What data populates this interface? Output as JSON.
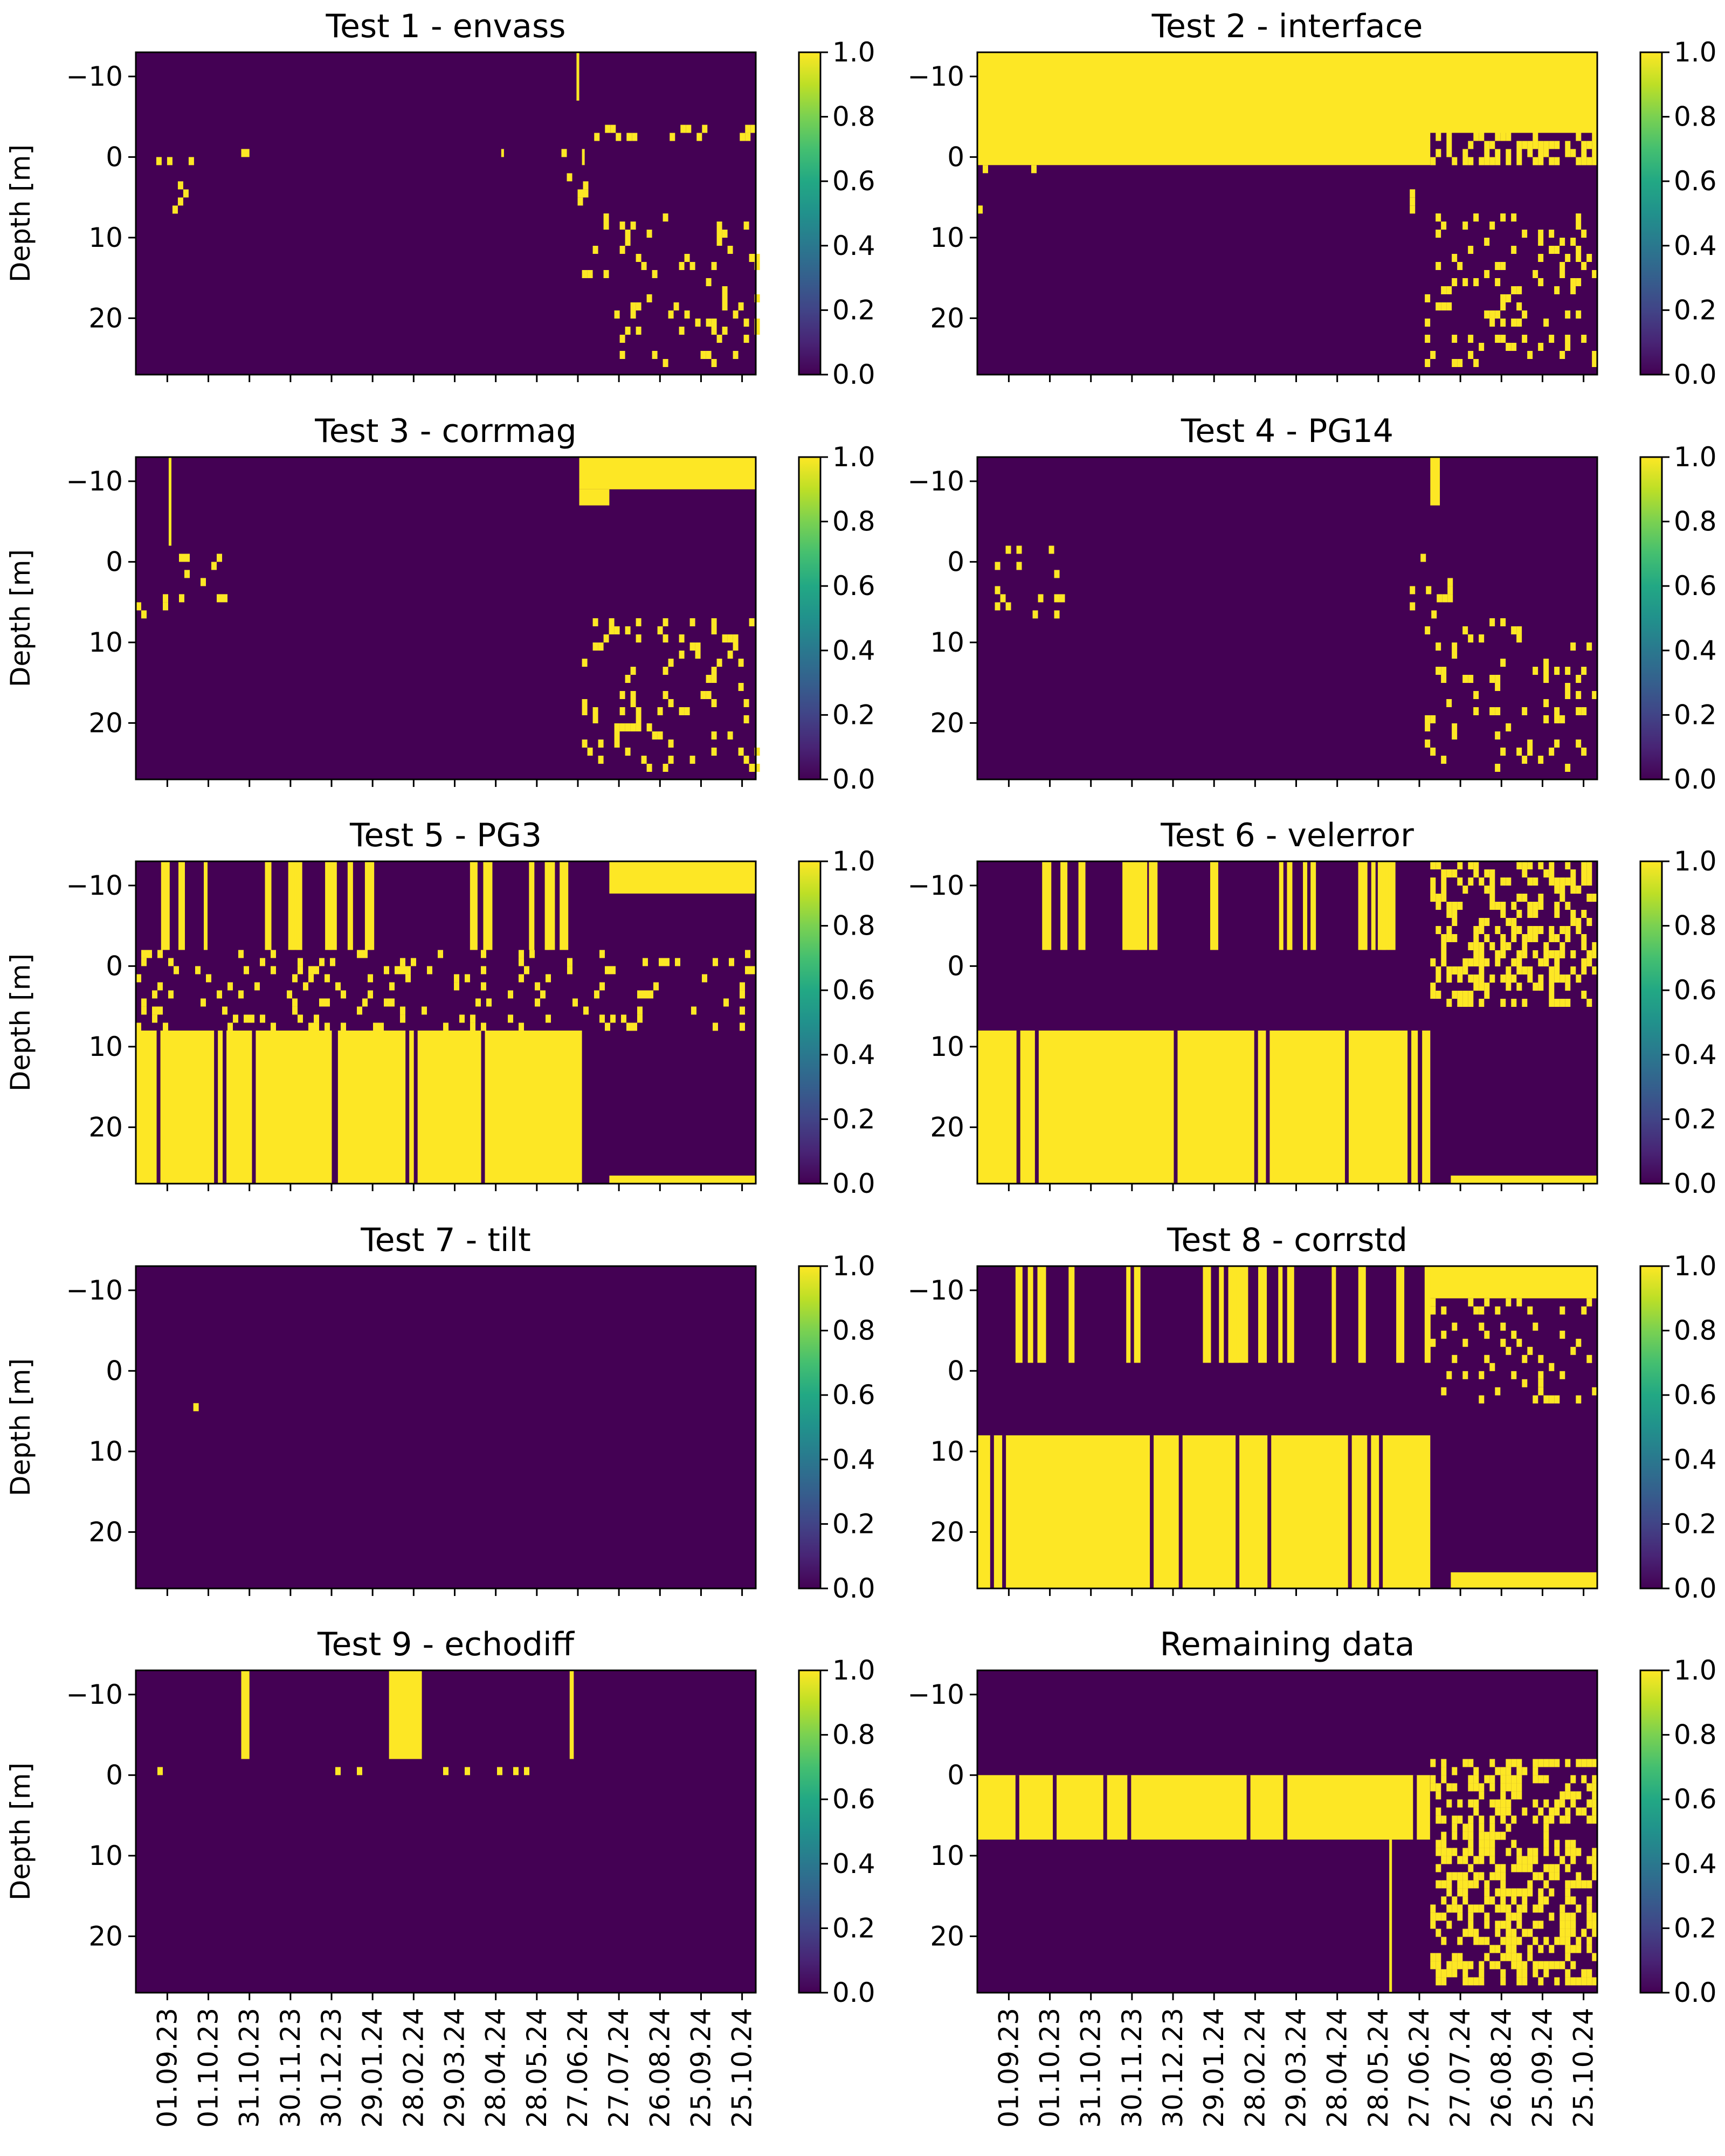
{
  "chart_data": {
    "type": "heatmap",
    "layout": "5 rows x 2 columns of heatmap panels with colorbars",
    "ylabel": "Depth [m]",
    "y_ticks": [
      -10,
      0,
      10,
      20
    ],
    "y_range": [
      -13,
      27
    ],
    "y_inverted": true,
    "x_tick_labels": [
      "01.09.23",
      "01.10.23",
      "31.10.23",
      "30.11.23",
      "30.12.23",
      "29.01.24",
      "28.02.24",
      "29.03.24",
      "28.04.24",
      "28.05.24",
      "27.06.24",
      "27.07.24",
      "26.08.24",
      "25.09.24",
      "25.10.24"
    ],
    "x_range": [
      "2023-08-09",
      "2024-11-04"
    ],
    "colorbar": {
      "min": 0.0,
      "max": 1.0,
      "ticks": [
        "0.0",
        "0.2",
        "0.4",
        "0.6",
        "0.8",
        "1.0"
      ],
      "colormap": "viridis",
      "low_color": "#440154",
      "high_color": "#fde725"
    },
    "values_note": "binary flag 0/1 per time-depth cell",
    "panels": [
      {
        "title": "Test 1 - envass",
        "flagged_regions": [
          {
            "x": [
              "2024-06-26",
              "2024-06-28"
            ],
            "y": [
              -13,
              -7
            ]
          },
          {
            "x": [
              "2024-06-30",
              "2024-07-02"
            ],
            "y": [
              -1,
              1
            ]
          },
          {
            "x": [
              "2023-08-20",
              "2023-09-20"
            ],
            "y": [
              -1,
              7
            ],
            "pattern": "scattered"
          },
          {
            "x": [
              "2023-10-25",
              "2023-10-31"
            ],
            "y": [
              -1,
              0
            ]
          },
          {
            "x": [
              "2024-05-02",
              "2024-05-04"
            ],
            "y": [
              -1,
              0
            ]
          },
          {
            "x": [
              "2024-06-15",
              "2024-07-02"
            ],
            "y": [
              -1,
              7
            ],
            "pattern": "scattered"
          },
          {
            "x": [
              "2024-07-05",
              "2024-11-04"
            ],
            "y": [
              -4,
              -2
            ],
            "pattern": "scattered"
          },
          {
            "x": [
              "2024-06-30",
              "2024-11-04"
            ],
            "y": [
              7,
              26
            ],
            "pattern": "scattered"
          }
        ]
      },
      {
        "title": "Test 2 - interface",
        "flagged_regions": [
          {
            "x": [
              "2023-08-09",
              "2024-11-04"
            ],
            "y": [
              -13,
              -3
            ]
          },
          {
            "x": [
              "2023-08-09",
              "2024-07-05"
            ],
            "y": [
              -3,
              1
            ]
          },
          {
            "x": [
              "2024-07-05",
              "2024-11-04"
            ],
            "y": [
              -3,
              1
            ],
            "pattern": "partial"
          },
          {
            "x": [
              "2023-08-09",
              "2023-09-25"
            ],
            "y": [
              1,
              7
            ],
            "pattern": "scattered"
          },
          {
            "x": [
              "2024-06-20",
              "2024-06-23"
            ],
            "y": [
              2,
              7
            ],
            "pattern": "scattered"
          },
          {
            "x": [
              "2024-07-01",
              "2024-11-04"
            ],
            "y": [
              7,
              26
            ],
            "pattern": "scattered"
          }
        ]
      },
      {
        "title": "Test 3 - corrmag",
        "flagged_regions": [
          {
            "x": [
              "2023-09-02",
              "2023-09-04"
            ],
            "y": [
              -13,
              -2
            ]
          },
          {
            "x": [
              "2024-06-28",
              "2024-11-04"
            ],
            "y": [
              -13,
              -9
            ]
          },
          {
            "x": [
              "2024-06-28",
              "2024-07-20"
            ],
            "y": [
              -9,
              -7
            ]
          },
          {
            "x": [
              "2023-08-09",
              "2023-10-15"
            ],
            "y": [
              -1,
              7
            ],
            "pattern": "scattered"
          },
          {
            "x": [
              "2024-06-20",
              "2024-07-03"
            ],
            "y": [
              -1,
              5
            ],
            "pattern": "scattered"
          },
          {
            "x": [
              "2024-06-30",
              "2024-11-04"
            ],
            "y": [
              7,
              26
            ],
            "pattern": "scattered"
          }
        ]
      },
      {
        "title": "Test 4 - PG14",
        "flagged_regions": [
          {
            "x": [
              "2024-07-05",
              "2024-07-12"
            ],
            "y": [
              -13,
              -7
            ]
          },
          {
            "x": [
              "2023-08-10",
              "2023-10-10"
            ],
            "y": [
              -2,
              7
            ],
            "pattern": "scattered"
          },
          {
            "x": [
              "2024-06-20",
              "2024-07-20"
            ],
            "y": [
              -2,
              7
            ],
            "pattern": "scattered"
          },
          {
            "x": [
              "2024-07-01",
              "2024-11-04"
            ],
            "y": [
              7,
              26
            ],
            "pattern": "scattered"
          }
        ]
      },
      {
        "title": "Test 5 - PG3",
        "flagged_regions": [
          {
            "x": [
              "2023-08-09",
              "2024-06-30"
            ],
            "y": [
              8,
              27
            ],
            "pattern": "mostly flagged with vertical gaps"
          },
          {
            "x": [
              "2023-08-25",
              "2024-06-25"
            ],
            "y": [
              -13,
              -2
            ],
            "pattern": "vertical stripes"
          },
          {
            "x": [
              "2024-07-20",
              "2024-11-04"
            ],
            "y": [
              -13,
              -9
            ]
          },
          {
            "x": [
              "2024-07-20",
              "2024-11-04"
            ],
            "y": [
              26,
              27
            ]
          },
          {
            "x": [
              "2023-08-09",
              "2024-11-04"
            ],
            "y": [
              -2,
              8
            ],
            "pattern": "scattered"
          }
        ]
      },
      {
        "title": "Test 6 - velerror",
        "flagged_regions": [
          {
            "x": [
              "2023-08-09",
              "2024-07-05"
            ],
            "y": [
              8,
              27
            ],
            "pattern": "mostly flagged with vertical gaps"
          },
          {
            "x": [
              "2023-08-09",
              "2024-07-05"
            ],
            "y": [
              -13,
              -2
            ],
            "pattern": "vertical stripes"
          },
          {
            "x": [
              "2024-07-05",
              "2024-11-04"
            ],
            "y": [
              -13,
              5
            ],
            "pattern": "dense scattered"
          },
          {
            "x": [
              "2024-07-20",
              "2024-11-04"
            ],
            "y": [
              26,
              27
            ]
          }
        ]
      },
      {
        "title": "Test 7 - tilt",
        "flagged_regions": [
          {
            "x": [
              "2023-09-20",
              "2023-10-01"
            ],
            "y": [
              2,
              5
            ],
            "pattern": "scattered"
          }
        ]
      },
      {
        "title": "Test 8 - corrstd",
        "flagged_regions": [
          {
            "x": [
              "2023-08-09",
              "2024-07-05"
            ],
            "y": [
              8,
              27
            ],
            "pattern": "mostly flagged with vertical gaps"
          },
          {
            "x": [
              "2023-08-25",
              "2024-07-05"
            ],
            "y": [
              -13,
              -1
            ],
            "pattern": "vertical stripes"
          },
          {
            "x": [
              "2024-07-05",
              "2024-11-04"
            ],
            "y": [
              -13,
              -9
            ]
          },
          {
            "x": [
              "2024-07-05",
              "2024-11-04"
            ],
            "y": [
              -9,
              4
            ],
            "pattern": "scattered"
          },
          {
            "x": [
              "2024-07-20",
              "2024-11-04"
            ],
            "y": [
              25,
              27
            ]
          }
        ]
      },
      {
        "title": "Test 9 - echodiff",
        "flagged_regions": [
          {
            "x": [
              "2023-10-25",
              "2023-10-31"
            ],
            "y": [
              -13,
              -2
            ]
          },
          {
            "x": [
              "2024-02-10",
              "2024-03-05"
            ],
            "y": [
              -13,
              -2
            ]
          },
          {
            "x": [
              "2024-06-21",
              "2024-06-24"
            ],
            "y": [
              -13,
              -2
            ]
          },
          {
            "x": [
              "2023-08-09",
              "2024-07-01"
            ],
            "y": [
              -1,
              0
            ],
            "pattern": "scattered"
          }
        ]
      },
      {
        "title": "Remaining data",
        "flagged_regions": [
          {
            "x": [
              "2023-08-09",
              "2024-07-05"
            ],
            "y": [
              0,
              8
            ],
            "pattern": "mostly valid with gaps"
          },
          {
            "x": [
              "2024-06-05",
              "2024-06-07"
            ],
            "y": [
              8,
              27
            ]
          },
          {
            "x": [
              "2024-07-05",
              "2024-11-04"
            ],
            "y": [
              -2,
              26
            ],
            "pattern": "dense scattered"
          }
        ]
      }
    ]
  }
}
